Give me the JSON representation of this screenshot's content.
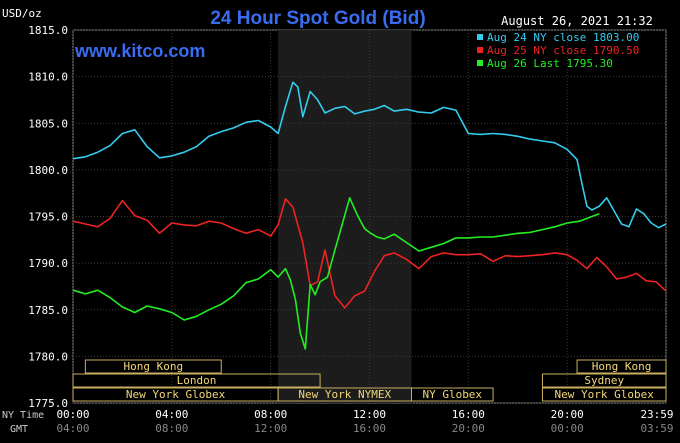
{
  "chart_data": {
    "type": "line",
    "title": "24 Hour Spot Gold (Bid)",
    "unit_label": "USD/oz",
    "timestamp": "August 26, 2021 21:32",
    "watermark": "www.kitco.com",
    "ylim": [
      1775,
      1815
    ],
    "xlim": [
      0,
      24
    ],
    "y_ticks": [
      "1815.0",
      "1810.0",
      "1805.0",
      "1800.0",
      "1795.0",
      "1790.0",
      "1785.0",
      "1780.0",
      "1775.0"
    ],
    "y_tick_values": [
      1815,
      1810,
      1805,
      1800,
      1795,
      1790,
      1785,
      1780,
      1775
    ],
    "x_row_labels": {
      "ny": "NY Time",
      "gmt": "GMT"
    },
    "x_ticks_ny": [
      "00:00",
      "04:00",
      "08:00",
      "12:00",
      "16:00",
      "20:00",
      "23:59"
    ],
    "x_ticks_gmt": [
      "04:00",
      "08:00",
      "12:00",
      "16:00",
      "20:00",
      "00:00",
      "03:59"
    ],
    "x_tick_hours": [
      0,
      4,
      8,
      12,
      16,
      20,
      24
    ],
    "shaded_hours": [
      8.3,
      13.7
    ],
    "legend": [
      {
        "label": "Aug 24 NY close 1803.00",
        "color": "#33ccee"
      },
      {
        "label": "Aug 25 NY close 1790.50",
        "color": "#ee2222"
      },
      {
        "label": "Aug 26 Last 1795.30",
        "color": "#22ee22"
      }
    ],
    "sessions": [
      {
        "label": "Hong Kong",
        "row": 0,
        "start": 0.5,
        "end": 6.0
      },
      {
        "label": "Hong Kong",
        "row": 0,
        "start": 20.4,
        "end": 24.0
      },
      {
        "label": "London",
        "row": 1,
        "start": 0.0,
        "end": 10.0
      },
      {
        "label": "Sydney",
        "row": 1,
        "start": 19.0,
        "end": 24.0
      },
      {
        "label": "New York Globex",
        "row": 2,
        "start": 0.0,
        "end": 8.3
      },
      {
        "label": "New York NYMEX",
        "row": 2,
        "start": 8.3,
        "end": 13.7
      },
      {
        "label": "NY Globex",
        "row": 2,
        "start": 13.7,
        "end": 17.0
      },
      {
        "label": "New York Globex",
        "row": 2,
        "start": 19.0,
        "end": 24.0
      }
    ],
    "series": [
      {
        "name": "Aug 24 NY close 1803.00",
        "color": "#33ccee",
        "x": [
          0,
          0.5,
          1,
          1.5,
          2,
          2.5,
          3,
          3.5,
          4,
          4.5,
          5,
          5.5,
          6,
          6.5,
          7,
          7.5,
          8,
          8.3,
          8.6,
          8.9,
          9.1,
          9.3,
          9.6,
          9.9,
          10.2,
          10.6,
          11,
          11.4,
          11.8,
          12.2,
          12.6,
          13,
          13.5,
          14,
          14.5,
          15,
          15.5,
          16,
          16.5,
          17,
          17.5,
          18,
          18.5,
          19,
          19.5,
          20,
          20.4,
          20.6,
          20.8,
          21,
          21.3,
          21.6,
          21.9,
          22.2,
          22.5,
          22.8,
          23.1,
          23.4,
          23.7,
          24
        ],
        "values": [
          1801.2,
          1801.4,
          1801.9,
          1802.6,
          1803.9,
          1804.3,
          1802.5,
          1801.3,
          1801.5,
          1801.9,
          1802.5,
          1803.6,
          1804.1,
          1804.5,
          1805.1,
          1805.3,
          1804.6,
          1803.9,
          1806.8,
          1809.4,
          1808.9,
          1805.7,
          1808.4,
          1807.5,
          1806.1,
          1806.6,
          1806.8,
          1806.0,
          1806.3,
          1806.5,
          1806.9,
          1806.3,
          1806.5,
          1806.2,
          1806.1,
          1806.7,
          1806.4,
          1803.9,
          1803.8,
          1803.9,
          1803.8,
          1803.6,
          1803.3,
          1803.1,
          1802.9,
          1802.2,
          1801.1,
          1798.5,
          1796.1,
          1795.7,
          1796.1,
          1797.0,
          1795.6,
          1794.2,
          1793.9,
          1795.8,
          1795.3,
          1794.3,
          1793.8,
          1794.2
        ]
      },
      {
        "name": "Aug 25 NY close 1790.50",
        "color": "#ee2222",
        "x": [
          0,
          0.5,
          1,
          1.5,
          2,
          2.5,
          3,
          3.5,
          4,
          4.5,
          5,
          5.5,
          6,
          6.5,
          7,
          7.5,
          8,
          8.3,
          8.6,
          8.9,
          9.1,
          9.3,
          9.6,
          9.9,
          10.2,
          10.6,
          11,
          11.4,
          11.8,
          12.2,
          12.6,
          13,
          13.5,
          14,
          14.5,
          15,
          15.5,
          16,
          16.5,
          17,
          17.5,
          18,
          18.5,
          19,
          19.5,
          20,
          20.4,
          20.8,
          21.2,
          21.6,
          22,
          22.4,
          22.8,
          23.2,
          23.6,
          24
        ],
        "values": [
          1794.5,
          1794.2,
          1793.9,
          1794.8,
          1796.7,
          1795.1,
          1794.6,
          1793.2,
          1794.3,
          1794.1,
          1794.0,
          1794.5,
          1794.3,
          1793.7,
          1793.2,
          1793.6,
          1792.9,
          1794.1,
          1796.9,
          1796.0,
          1794.1,
          1792.2,
          1787.6,
          1788.0,
          1791.4,
          1786.5,
          1785.2,
          1786.5,
          1787.0,
          1789.1,
          1790.8,
          1791.1,
          1790.4,
          1789.4,
          1790.7,
          1791.1,
          1790.9,
          1790.9,
          1791.0,
          1790.2,
          1790.8,
          1790.7,
          1790.8,
          1790.9,
          1791.1,
          1790.9,
          1790.3,
          1789.4,
          1790.6,
          1789.6,
          1788.3,
          1788.5,
          1788.9,
          1788.1,
          1788.0,
          1787.0
        ]
      },
      {
        "name": "Aug 26 Last 1795.30",
        "color": "#22ee22",
        "x": [
          0,
          0.5,
          1,
          1.5,
          2,
          2.5,
          3,
          3.5,
          4,
          4.5,
          5,
          5.5,
          6,
          6.5,
          7,
          7.5,
          8,
          8.3,
          8.6,
          8.8,
          9,
          9.2,
          9.4,
          9.6,
          9.8,
          10,
          10.3,
          10.6,
          10.9,
          11.2,
          11.5,
          11.8,
          12,
          12.3,
          12.6,
          13,
          13.5,
          14,
          14.5,
          15,
          15.5,
          16,
          16.5,
          17,
          17.5,
          18,
          18.5,
          19,
          19.5,
          20,
          20.5,
          21,
          21.3
        ],
        "values": [
          1787.1,
          1786.7,
          1787.1,
          1786.3,
          1785.3,
          1784.7,
          1785.4,
          1785.1,
          1784.7,
          1783.9,
          1784.3,
          1785.0,
          1785.6,
          1786.5,
          1787.9,
          1788.3,
          1789.3,
          1788.5,
          1789.4,
          1788.2,
          1786.1,
          1782.5,
          1780.8,
          1787.7,
          1786.6,
          1788.0,
          1788.5,
          1791.4,
          1794.2,
          1797.0,
          1795.2,
          1793.7,
          1793.3,
          1792.8,
          1792.6,
          1793.1,
          1792.2,
          1791.3,
          1791.7,
          1792.1,
          1792.7,
          1792.7,
          1792.8,
          1792.8,
          1793.0,
          1793.2,
          1793.3,
          1793.6,
          1793.9,
          1794.3,
          1794.5,
          1795.0,
          1795.3
        ]
      }
    ]
  }
}
